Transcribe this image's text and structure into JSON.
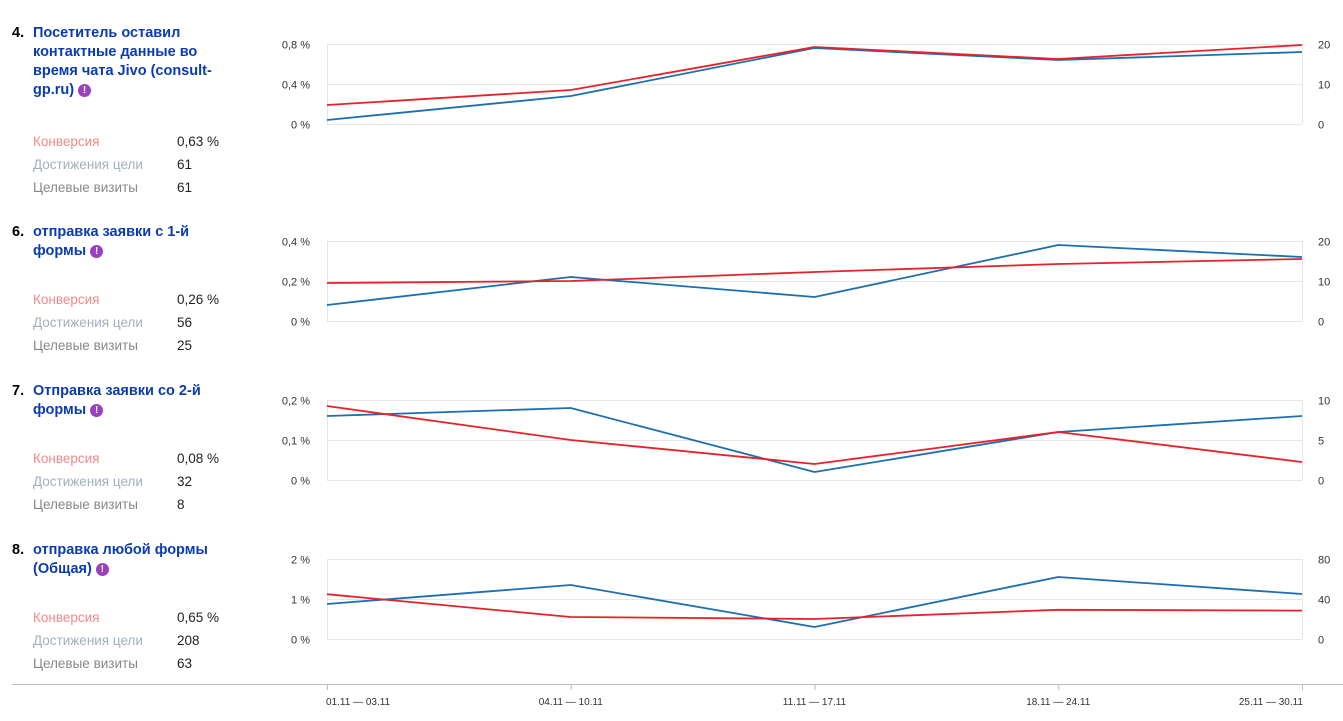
{
  "goals": [
    {
      "number": "4.",
      "title": "Посетитель оставил контактные данные во время чата Jivo (consult-gp.ru)",
      "metrics": [
        {
          "label": "Конверсия",
          "value": "0,63 %"
        },
        {
          "label": "Достижения цели",
          "value": "61"
        },
        {
          "label": "Целевые визиты",
          "value": "61"
        }
      ]
    },
    {
      "number": "6.",
      "title": "отправка заявки с 1-й формы",
      "metrics": [
        {
          "label": "Конверсия",
          "value": "0,26 %"
        },
        {
          "label": "Достижения цели",
          "value": "56"
        },
        {
          "label": "Целевые визиты",
          "value": "25"
        }
      ]
    },
    {
      "number": "7.",
      "title": "Отправка заявки со 2-й формы",
      "metrics": [
        {
          "label": "Конверсия",
          "value": "0,08 %"
        },
        {
          "label": "Достижения цели",
          "value": "32"
        },
        {
          "label": "Целевые визиты",
          "value": "8"
        }
      ]
    },
    {
      "number": "8.",
      "title": "отправка любой формы (Общая)",
      "metrics": [
        {
          "label": "Конверсия",
          "value": "0,65 %"
        },
        {
          "label": "Достижения цели",
          "value": "208"
        },
        {
          "label": "Целевые визиты",
          "value": "63"
        }
      ]
    }
  ],
  "colors": {
    "conversion_line": "#e8222a",
    "reaches_line": "#1c6fb0",
    "grid": "#e6e6e6",
    "axis_text": "#333333"
  },
  "icons": {
    "goal_warning": "exclamation-icon"
  },
  "warning_glyph": "!",
  "chart_data": [
    {
      "type": "line",
      "categories": [
        "01.11 — 03.11",
        "04.11 — 10.11",
        "11.11 — 17.11",
        "18.11 — 24.11",
        "25.11 — 30.11"
      ],
      "y_left": {
        "ticks": [
          0,
          0.4,
          0.8
        ],
        "tick_labels": [
          "0 %",
          "0,4 %",
          "0,8 %"
        ],
        "ylim": [
          0,
          0.8
        ]
      },
      "y_right": {
        "ticks": [
          0,
          10,
          20
        ],
        "tick_labels": [
          "0",
          "10",
          "20"
        ],
        "ylim": [
          0,
          20
        ]
      },
      "series": [
        {
          "axis": "left",
          "color_key": "conversion_line",
          "values": [
            0.19,
            0.34,
            0.77,
            0.65,
            0.79
          ]
        },
        {
          "axis": "right",
          "color_key": "reaches_line",
          "values": [
            1,
            7,
            19,
            16,
            18
          ]
        }
      ]
    },
    {
      "type": "line",
      "categories": [
        "01.11 — 03.11",
        "04.11 — 10.11",
        "11.11 — 17.11",
        "18.11 — 24.11",
        "25.11 — 30.11"
      ],
      "y_left": {
        "ticks": [
          0,
          0.2,
          0.4
        ],
        "tick_labels": [
          "0 %",
          "0,2 %",
          "0,4 %"
        ],
        "ylim": [
          0,
          0.4
        ]
      },
      "y_right": {
        "ticks": [
          0,
          10,
          20
        ],
        "tick_labels": [
          "0",
          "10",
          "20"
        ],
        "ylim": [
          0,
          20
        ]
      },
      "series": [
        {
          "axis": "left",
          "color_key": "conversion_line",
          "values": [
            0.19,
            0.2,
            0.245,
            0.285,
            0.31
          ]
        },
        {
          "axis": "right",
          "color_key": "reaches_line",
          "values": [
            4,
            11,
            6,
            19,
            16
          ]
        }
      ]
    },
    {
      "type": "line",
      "categories": [
        "01.11 — 03.11",
        "04.11 — 10.11",
        "11.11 — 17.11",
        "18.11 — 24.11",
        "25.11 — 30.11"
      ],
      "y_left": {
        "ticks": [
          0,
          0.1,
          0.2
        ],
        "tick_labels": [
          "0 %",
          "0,1 %",
          "0,2 %"
        ],
        "ylim": [
          0,
          0.2
        ]
      },
      "y_right": {
        "ticks": [
          0,
          5,
          10
        ],
        "tick_labels": [
          "0",
          "5",
          "10"
        ],
        "ylim": [
          0,
          10
        ]
      },
      "series": [
        {
          "axis": "left",
          "color_key": "conversion_line",
          "values": [
            0.185,
            0.1,
            0.04,
            0.12,
            0.045
          ]
        },
        {
          "axis": "right",
          "color_key": "reaches_line",
          "values": [
            8,
            9,
            1,
            6,
            8
          ]
        }
      ]
    },
    {
      "type": "line",
      "categories": [
        "01.11 — 03.11",
        "04.11 — 10.11",
        "11.11 — 17.11",
        "18.11 — 24.11",
        "25.11 — 30.11"
      ],
      "y_left": {
        "ticks": [
          0,
          1,
          2
        ],
        "tick_labels": [
          "0 %",
          "1 %",
          "2 %"
        ],
        "ylim": [
          0,
          2
        ]
      },
      "y_right": {
        "ticks": [
          0,
          40,
          80
        ],
        "tick_labels": [
          "0",
          "40",
          "80"
        ],
        "ylim": [
          0,
          80
        ]
      },
      "series": [
        {
          "axis": "left",
          "color_key": "conversion_line",
          "values": [
            1.12,
            0.55,
            0.5,
            0.73,
            0.71
          ]
        },
        {
          "axis": "right",
          "color_key": "reaches_line",
          "values": [
            35,
            54,
            12,
            62,
            45
          ]
        }
      ]
    }
  ]
}
